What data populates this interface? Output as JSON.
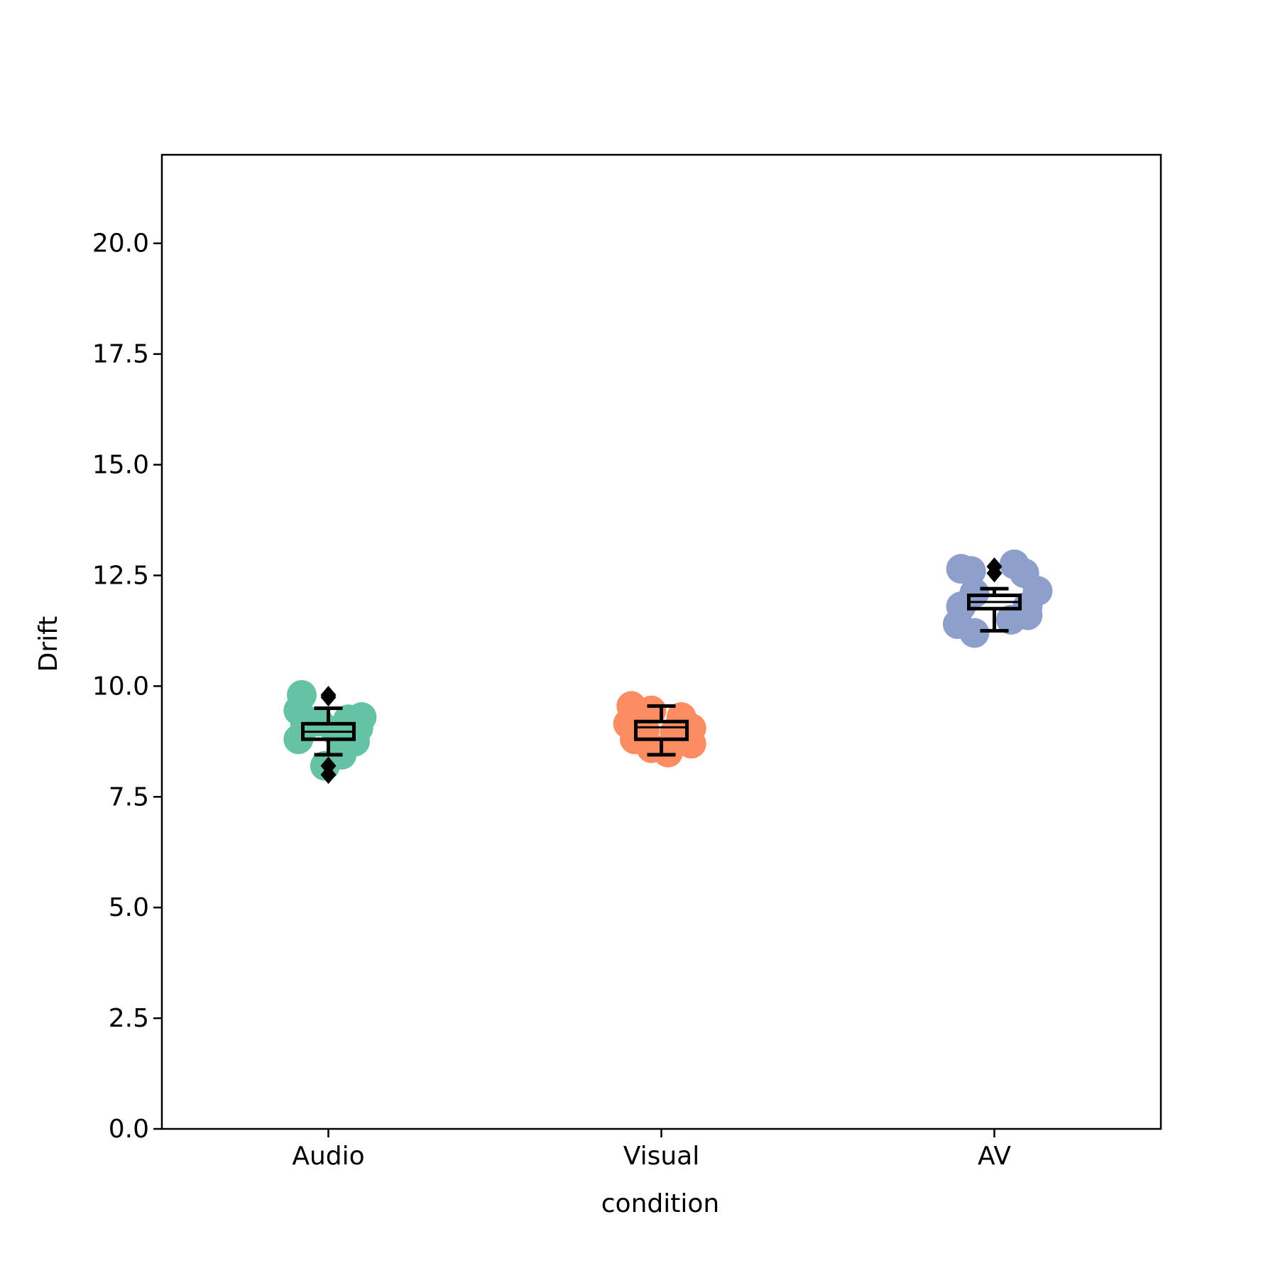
{
  "chart_data": {
    "type": "box",
    "title": "",
    "xlabel": "condition",
    "ylabel": "Drift",
    "ylim": [
      0,
      22
    ],
    "yticks": [
      "0.0",
      "2.5",
      "5.0",
      "7.5",
      "10.0",
      "12.5",
      "15.0",
      "17.5",
      "20.0"
    ],
    "categories": [
      "Audio",
      "Visual",
      "AV"
    ],
    "grid": false,
    "series": [
      {
        "category": "Audio",
        "color": "#66c2a5",
        "points": [
          {
            "x_offset": -0.08,
            "y": 9.8
          },
          {
            "x_offset": -0.09,
            "y": 9.45
          },
          {
            "x_offset": -0.07,
            "y": 9.1
          },
          {
            "x_offset": -0.09,
            "y": 8.8
          },
          {
            "x_offset": -0.03,
            "y": 9.2
          },
          {
            "x_offset": -0.01,
            "y": 8.2
          },
          {
            "x_offset": 0.04,
            "y": 8.45
          },
          {
            "x_offset": 0.08,
            "y": 8.75
          },
          {
            "x_offset": 0.09,
            "y": 9.05
          },
          {
            "x_offset": 0.1,
            "y": 9.3
          },
          {
            "x_offset": 0.06,
            "y": 9.25
          },
          {
            "x_offset": 0.02,
            "y": 9.0
          }
        ],
        "box": {
          "whisker_low": 8.45,
          "q1": 8.8,
          "median": 8.97,
          "q3": 9.15,
          "whisker_high": 9.5
        },
        "outliers": [
          8.0,
          8.2,
          9.75,
          9.8
        ]
      },
      {
        "category": "Visual",
        "color": "#fc8d62",
        "points": [
          {
            "x_offset": -0.09,
            "y": 9.55
          },
          {
            "x_offset": -0.1,
            "y": 9.15
          },
          {
            "x_offset": -0.08,
            "y": 8.8
          },
          {
            "x_offset": -0.03,
            "y": 9.45
          },
          {
            "x_offset": -0.03,
            "y": 8.6
          },
          {
            "x_offset": 0.02,
            "y": 8.5
          },
          {
            "x_offset": 0.06,
            "y": 9.3
          },
          {
            "x_offset": 0.09,
            "y": 9.05
          },
          {
            "x_offset": 0.09,
            "y": 8.7
          },
          {
            "x_offset": 0.04,
            "y": 8.95
          },
          {
            "x_offset": -0.05,
            "y": 9.0
          }
        ],
        "box": {
          "whisker_low": 8.45,
          "q1": 8.8,
          "median": 9.07,
          "q3": 9.2,
          "whisker_high": 9.55
        },
        "outliers": []
      },
      {
        "category": "AV",
        "color": "#8da0cb",
        "points": [
          {
            "x_offset": -0.1,
            "y": 12.65
          },
          {
            "x_offset": -0.07,
            "y": 12.6
          },
          {
            "x_offset": -0.1,
            "y": 11.8
          },
          {
            "x_offset": -0.11,
            "y": 11.4
          },
          {
            "x_offset": -0.06,
            "y": 11.2
          },
          {
            "x_offset": -0.06,
            "y": 12.1
          },
          {
            "x_offset": 0.06,
            "y": 12.75
          },
          {
            "x_offset": 0.09,
            "y": 12.55
          },
          {
            "x_offset": 0.13,
            "y": 12.15
          },
          {
            "x_offset": 0.1,
            "y": 11.8
          },
          {
            "x_offset": 0.1,
            "y": 11.6
          },
          {
            "x_offset": 0.05,
            "y": 11.5
          }
        ],
        "box": {
          "whisker_low": 11.25,
          "q1": 11.75,
          "median": 11.9,
          "q3": 12.05,
          "whisker_high": 12.2
        },
        "outliers": [
          12.55,
          12.7
        ]
      }
    ]
  }
}
